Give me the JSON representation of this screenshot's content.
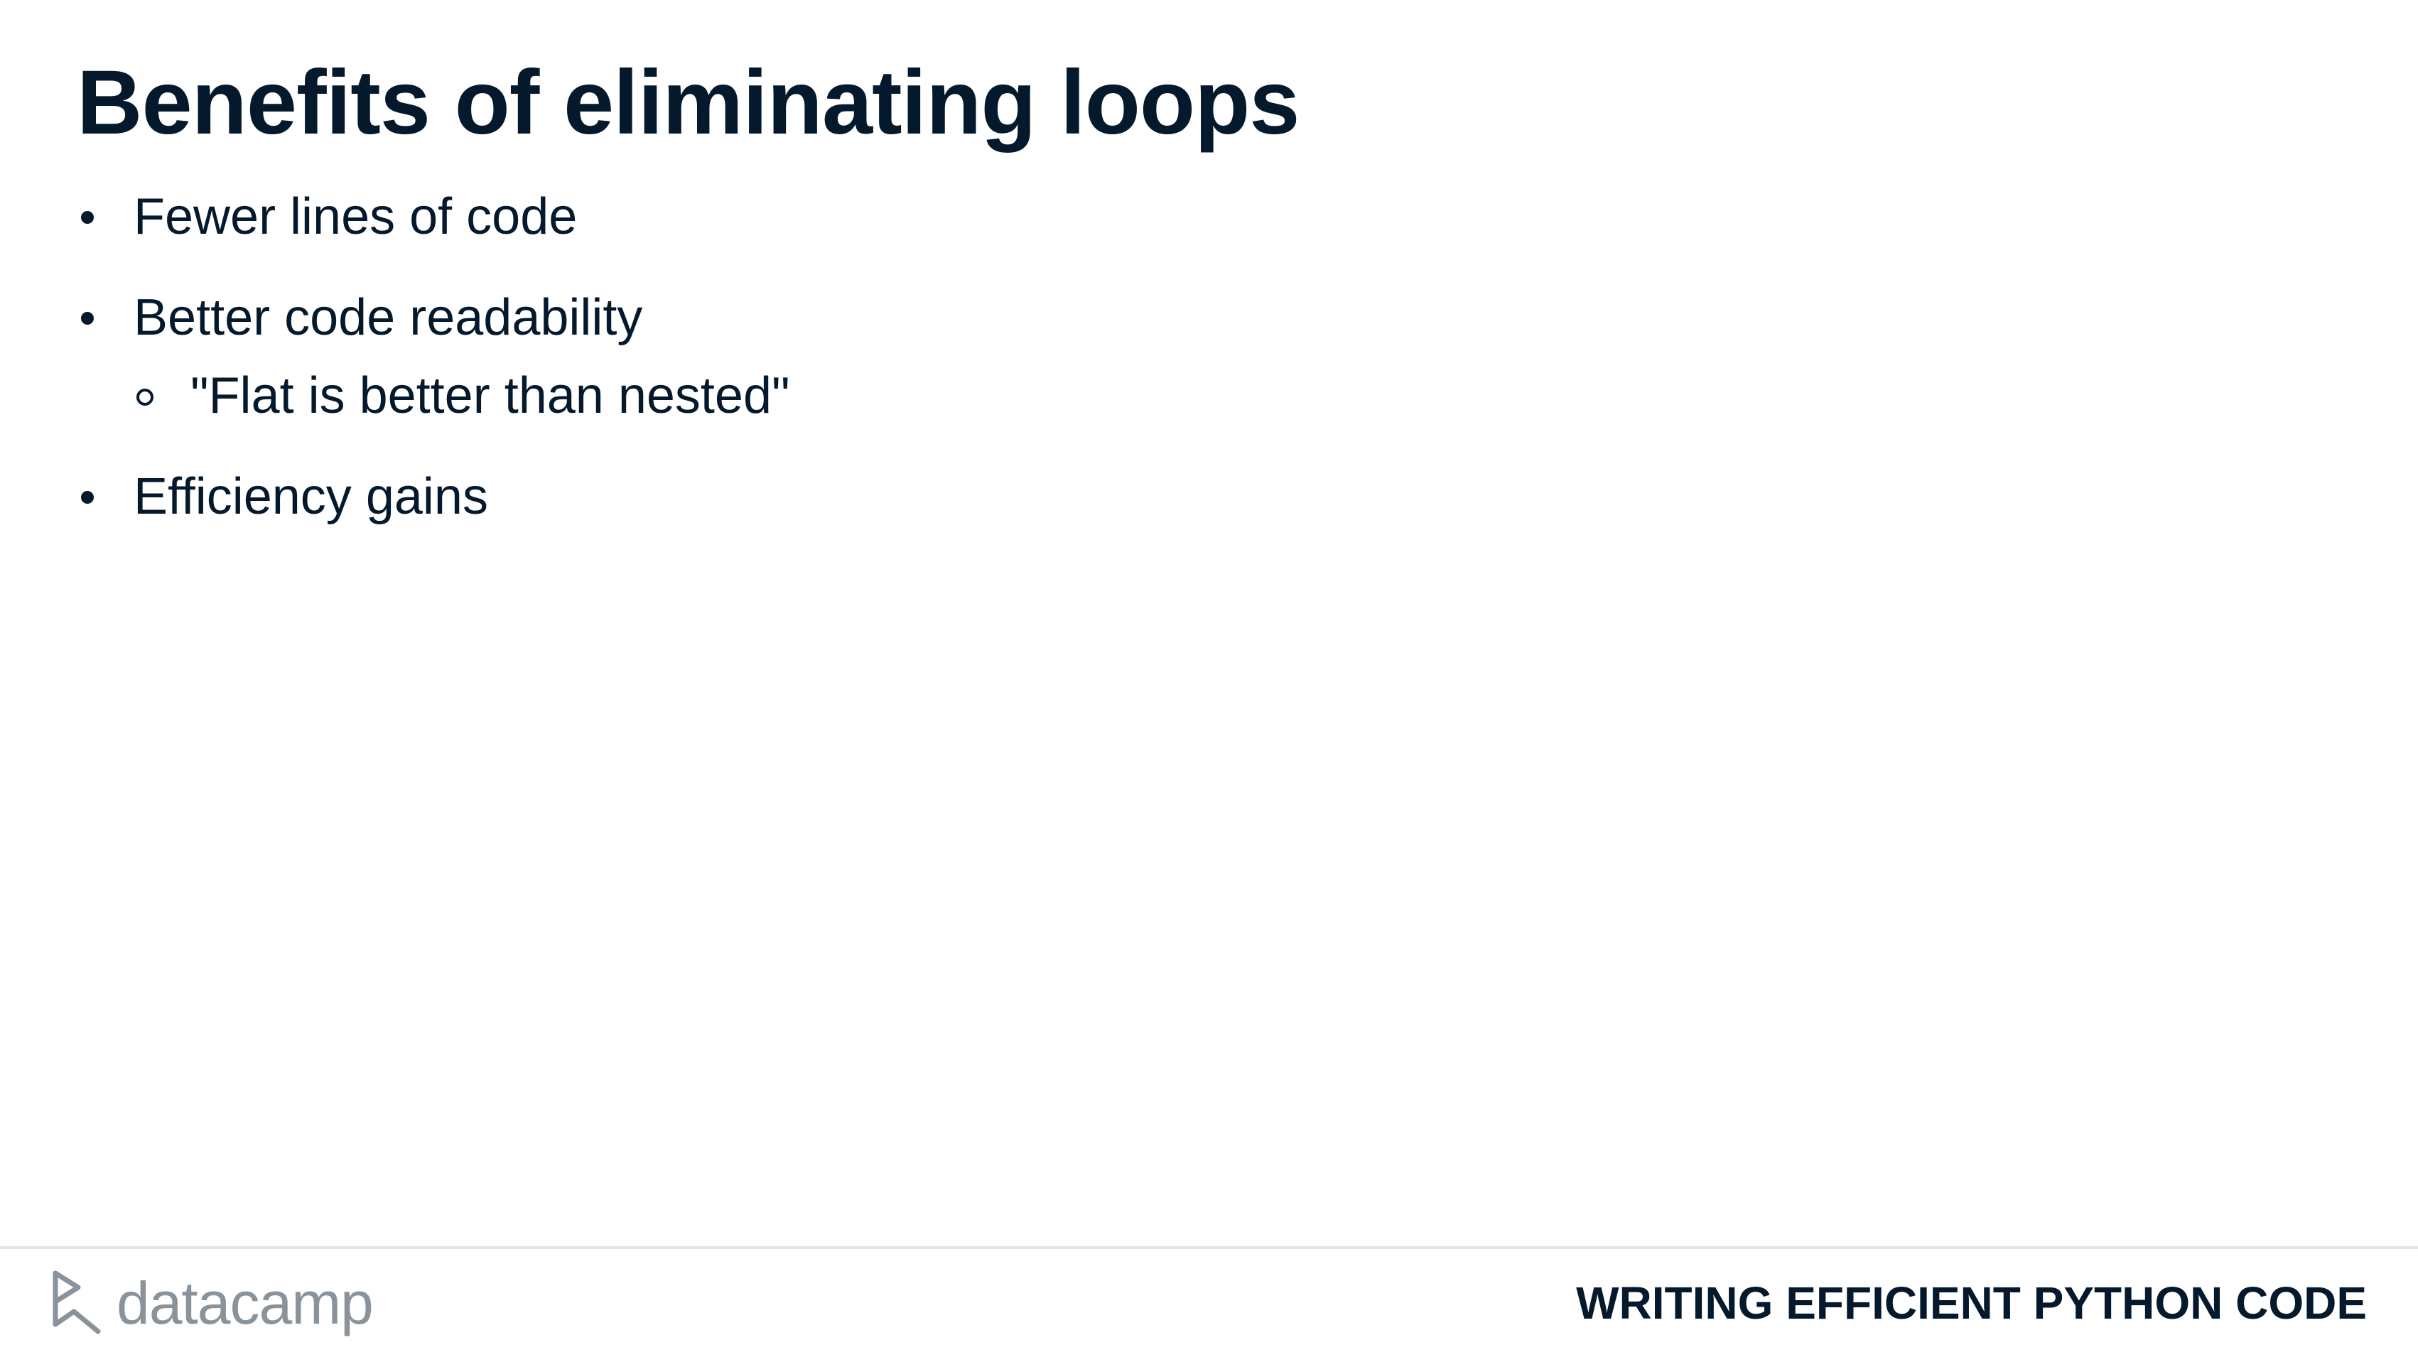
{
  "slide": {
    "title": "Benefits of eliminating loops",
    "bullets": [
      {
        "text": "Fewer lines of code",
        "sub": []
      },
      {
        "text": "Better code readability",
        "sub": [
          "\"Flat is better than nested\""
        ]
      },
      {
        "text": "Efficiency gains",
        "sub": []
      }
    ]
  },
  "footer": {
    "logo_text": "datacamp",
    "logo_icon": "datacamp-logo-icon",
    "course_title": "WRITING EFFICIENT PYTHON CODE"
  },
  "colors": {
    "text": "#05192d",
    "logo": "#8a939b",
    "divider": "#e5e5e5",
    "background": "#ffffff"
  }
}
